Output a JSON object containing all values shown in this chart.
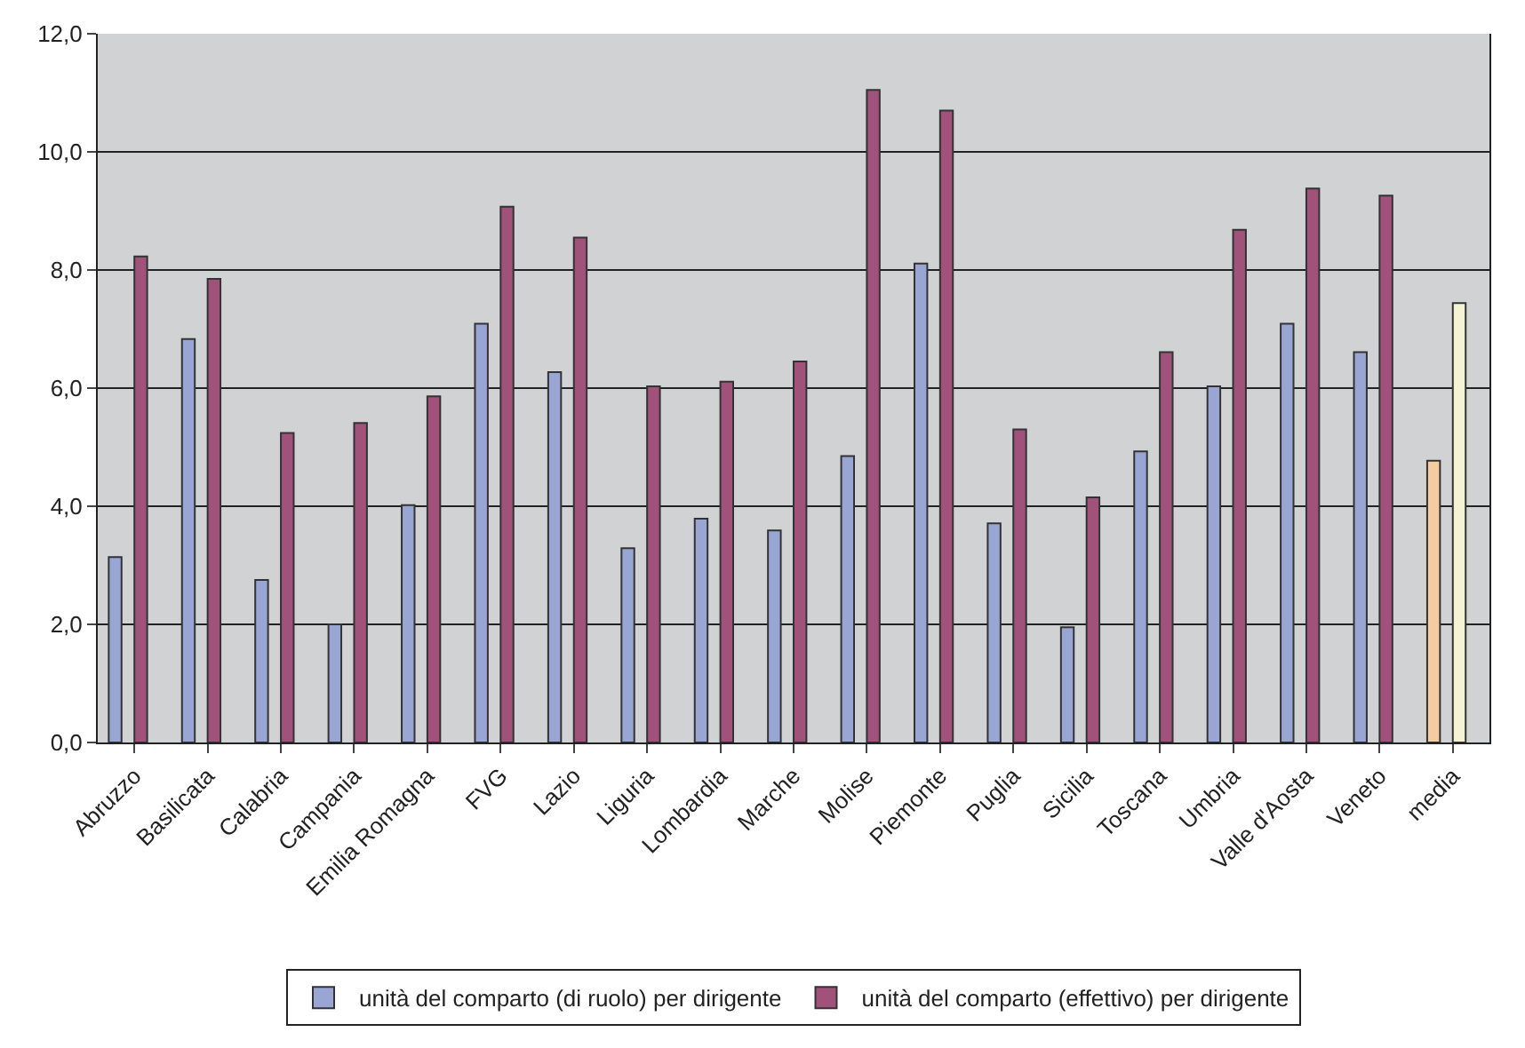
{
  "chart_data": {
    "type": "bar",
    "categories": [
      "Abruzzo",
      "Basilicata",
      "Calabria",
      "Campania",
      "Emilia Romagna",
      "FVG",
      "Lazio",
      "Liguria",
      "Lombardia",
      "Marche",
      "Molise",
      "Piemonte",
      "Puglia",
      "Sicilia",
      "Toscana",
      "Umbria",
      "Valle d'Aosta",
      "Veneto",
      "media"
    ],
    "series": [
      {
        "name": "unità del comparto (di ruolo) per dirigente",
        "color": "#99a6d4",
        "colors": [
          "#99a6d4",
          "#99a6d4",
          "#99a6d4",
          "#99a6d4",
          "#99a6d4",
          "#99a6d4",
          "#99a6d4",
          "#99a6d4",
          "#99a6d4",
          "#99a6d4",
          "#99a6d4",
          "#99a6d4",
          "#99a6d4",
          "#99a6d4",
          "#99a6d4",
          "#99a6d4",
          "#99a6d4",
          "#99a6d4",
          "#f5cba2"
        ],
        "values": [
          3.14,
          6.83,
          2.75,
          2.0,
          4.02,
          7.09,
          6.27,
          3.29,
          3.79,
          3.59,
          4.85,
          8.11,
          3.71,
          1.95,
          4.93,
          6.03,
          7.09,
          6.61,
          4.77
        ]
      },
      {
        "name": "unità del comparto (effettivo) per dirigente",
        "color": "#a0527a",
        "colors": [
          "#a0527a",
          "#a0527a",
          "#a0527a",
          "#a0527a",
          "#a0527a",
          "#a0527a",
          "#a0527a",
          "#a0527a",
          "#a0527a",
          "#a0527a",
          "#a0527a",
          "#a0527a",
          "#a0527a",
          "#a0527a",
          "#a0527a",
          "#a0527a",
          "#a0527a",
          "#a0527a",
          "#f4f3d3"
        ],
        "values": [
          8.23,
          7.85,
          5.24,
          5.41,
          5.86,
          9.07,
          8.55,
          6.03,
          6.11,
          6.45,
          11.05,
          10.7,
          5.3,
          4.15,
          6.61,
          8.68,
          9.38,
          9.26,
          7.44
        ]
      }
    ],
    "ylim": [
      0,
      12
    ],
    "yticks": [
      {
        "value": 0,
        "label": "0,0"
      },
      {
        "value": 2,
        "label": "2,0"
      },
      {
        "value": 4,
        "label": "4,0"
      },
      {
        "value": 6,
        "label": "6,0"
      },
      {
        "value": 8,
        "label": "8,0"
      },
      {
        "value": 10,
        "label": "10,0"
      },
      {
        "value": 12,
        "label": "12,0"
      }
    ],
    "grid": "y",
    "legend": "bottom"
  }
}
